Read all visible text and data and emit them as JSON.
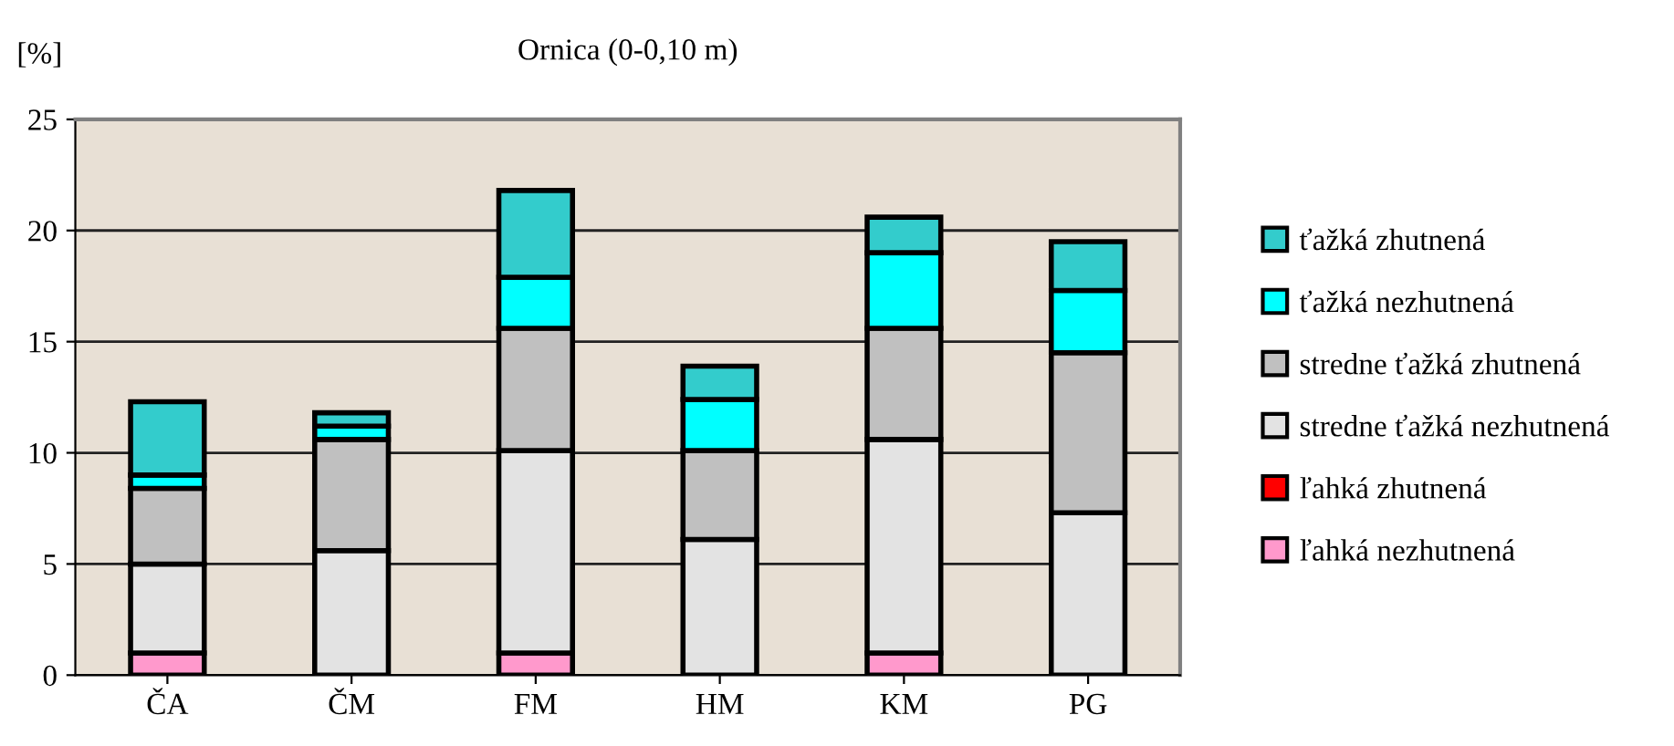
{
  "chart_data": {
    "type": "bar",
    "title": "Ornica (0-0,10 m)",
    "ylabel": "[%]",
    "categories": [
      "ČA",
      "ČM",
      "FM",
      "HM",
      "KM",
      "PG"
    ],
    "stacked": true,
    "ylim": [
      0,
      25
    ],
    "yticks": [
      0,
      5,
      10,
      15,
      20,
      25
    ],
    "grid": "y",
    "legend": "right",
    "series": [
      {
        "name": "ľahká nezhutnená",
        "color": "#ff99cc",
        "values": [
          1.0,
          0,
          1.0,
          0,
          1.0,
          0
        ]
      },
      {
        "name": "ľahká zhutnená",
        "color": "#ff0000",
        "values": [
          0,
          0,
          0,
          0,
          0,
          0
        ]
      },
      {
        "name": "stredne ťažká nezhutnená",
        "color": "#e3e3e3",
        "values": [
          4.0,
          5.6,
          9.1,
          6.1,
          9.6,
          7.3
        ]
      },
      {
        "name": "stredne ťažká zhutnená",
        "color": "#c0c0c0",
        "values": [
          3.4,
          5.0,
          5.5,
          4.0,
          5.0,
          7.2
        ]
      },
      {
        "name": "ťažká nezhutnená",
        "color": "#00ffff",
        "values": [
          0.6,
          0.6,
          2.3,
          2.3,
          3.4,
          2.8
        ]
      },
      {
        "name": "ťažká zhutnená",
        "color": "#33cccc",
        "values": [
          3.3,
          0.6,
          3.9,
          1.5,
          1.6,
          2.2
        ]
      }
    ]
  }
}
